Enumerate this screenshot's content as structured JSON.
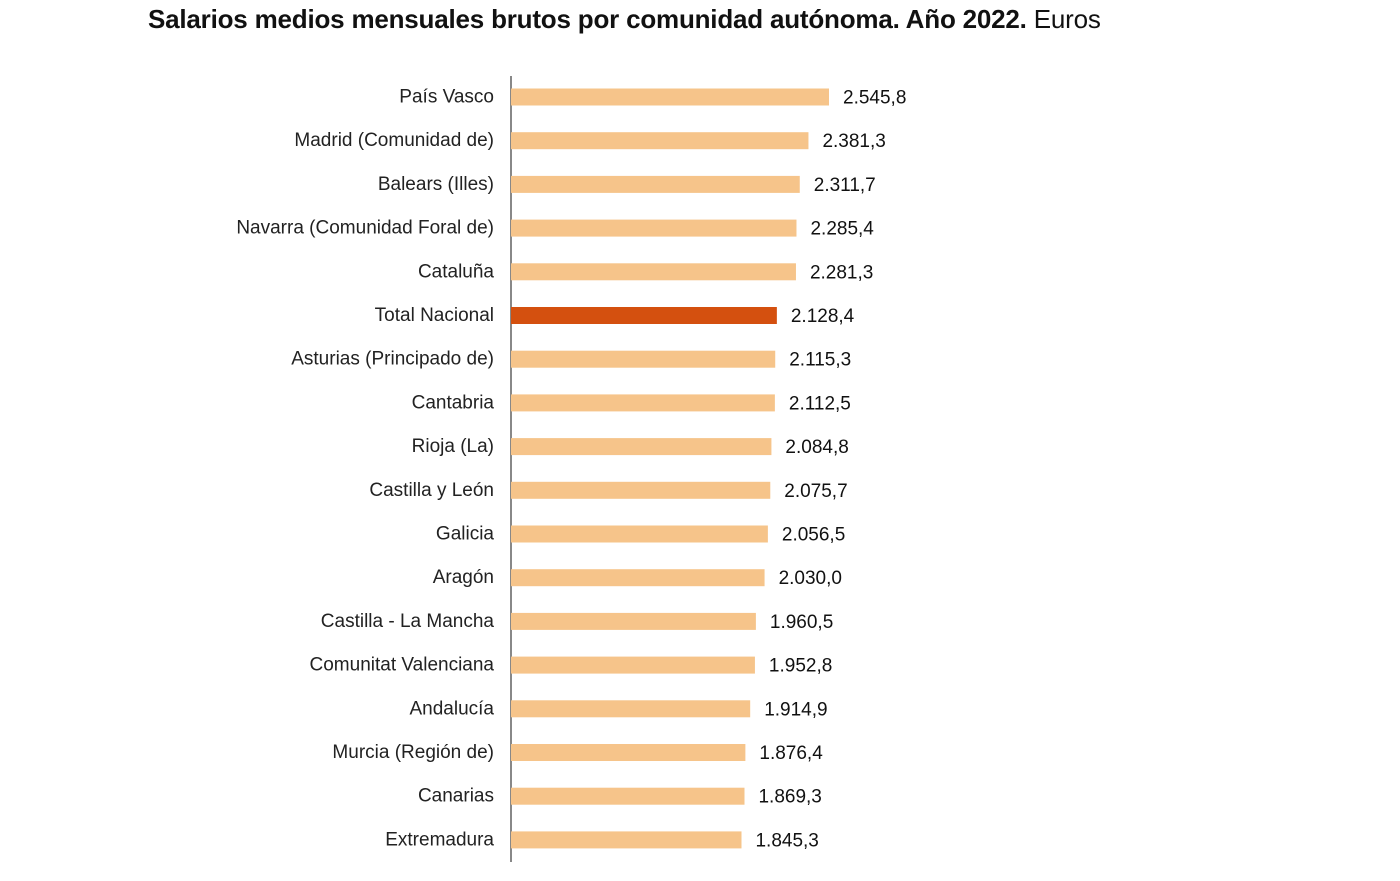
{
  "chart_data": {
    "type": "bar",
    "orientation": "horizontal",
    "title": "Salarios medios mensuales brutos por comunidad autónoma. Año 2022.",
    "unit": "Euros",
    "categories": [
      "País Vasco",
      "Madrid (Comunidad de)",
      "Balears (Illes)",
      "Navarra (Comunidad Foral de)",
      "Cataluña",
      "Total Nacional",
      "Asturias (Principado de)",
      "Cantabria",
      "Rioja (La)",
      "Castilla y León",
      "Galicia",
      "Aragón",
      "Castilla - La Mancha",
      "Comunitat Valenciana",
      "Andalucía",
      "Murcia (Región de)",
      "Canarias",
      "Extremadura"
    ],
    "values": [
      2545.8,
      2381.3,
      2311.7,
      2285.4,
      2281.3,
      2128.4,
      2115.3,
      2112.5,
      2084.8,
      2075.7,
      2056.5,
      2030.0,
      1960.5,
      1952.8,
      1914.9,
      1876.4,
      1869.3,
      1845.3
    ],
    "value_labels": [
      "2.545,8",
      "2.381,3",
      "2.311,7",
      "2.285,4",
      "2.281,3",
      "2.128,4",
      "2.115,3",
      "2.112,5",
      "2.084,8",
      "2.075,7",
      "2.056,5",
      "2.030,0",
      "1.960,5",
      "1.952,8",
      "1.914,9",
      "1.876,4",
      "1.869,3",
      "1.845,3"
    ],
    "highlight_category": "Total Nacional",
    "colors": {
      "bar": "#f6c48a",
      "highlight": "#d4500f",
      "axis": "#888888"
    },
    "xlim": [
      0,
      2545.8
    ],
    "grid": false,
    "legend": "none"
  }
}
